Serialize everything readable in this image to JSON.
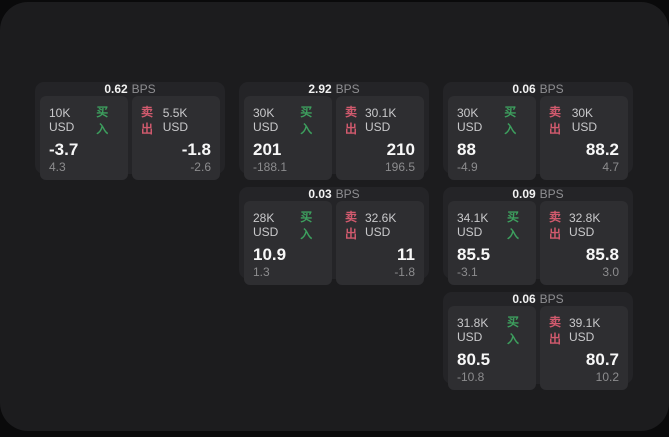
{
  "colors": {
    "background": "#0a0a0b",
    "panel_background": "#1c1c1e",
    "card_background": "#242427",
    "tile_background": "#2e2e31",
    "buy_green": "#3d9f5e",
    "sell_red": "#d25a6e",
    "value_white": "#f7f7f7",
    "muted_gray": "#8c8c8e"
  },
  "bps_unit_label": "BPS",
  "buy_label": "买入",
  "sell_label": "卖出",
  "cards": [
    {
      "col": 1,
      "row": 1,
      "header": {
        "value": "0.62",
        "unit": "BPS"
      },
      "buy": {
        "amount": "10K USD",
        "side_label": "买入",
        "value": "-3.7",
        "delta": "4.3"
      },
      "sell": {
        "side_label": "卖出",
        "amount": "5.5K USD",
        "value": "-1.8",
        "delta": "-2.6"
      }
    },
    {
      "col": 2,
      "row": 1,
      "header": {
        "value": "2.92",
        "unit": "BPS"
      },
      "buy": {
        "amount": "30K USD",
        "side_label": "买入",
        "value": "201",
        "delta": "-188.1"
      },
      "sell": {
        "side_label": "卖出",
        "amount": "30.1K USD",
        "value": "210",
        "delta": "196.5"
      }
    },
    {
      "col": 3,
      "row": 1,
      "header": {
        "value": "0.06",
        "unit": "BPS"
      },
      "buy": {
        "amount": "30K USD",
        "side_label": "买入",
        "value": "88",
        "delta": "-4.9"
      },
      "sell": {
        "side_label": "卖出",
        "amount": "30K USD",
        "value": "88.2",
        "delta": "4.7"
      }
    },
    {
      "col": 2,
      "row": 2,
      "header": {
        "value": "0.03",
        "unit": "BPS"
      },
      "buy": {
        "amount": "28K USD",
        "side_label": "买入",
        "value": "10.9",
        "delta": "1.3"
      },
      "sell": {
        "side_label": "卖出",
        "amount": "32.6K USD",
        "value": "11",
        "delta": "-1.8"
      }
    },
    {
      "col": 3,
      "row": 2,
      "header": {
        "value": "0.09",
        "unit": "BPS"
      },
      "buy": {
        "amount": "34.1K USD",
        "side_label": "买入",
        "value": "85.5",
        "delta": "-3.1"
      },
      "sell": {
        "side_label": "卖出",
        "amount": "32.8K USD",
        "value": "85.8",
        "delta": "3.0"
      }
    },
    {
      "col": 3,
      "row": 3,
      "header": {
        "value": "0.06",
        "unit": "BPS"
      },
      "buy": {
        "amount": "31.8K USD",
        "side_label": "买入",
        "value": "80.5",
        "delta": "-10.8"
      },
      "sell": {
        "side_label": "卖出",
        "amount": "39.1K USD",
        "value": "80.7",
        "delta": "10.2"
      }
    }
  ]
}
